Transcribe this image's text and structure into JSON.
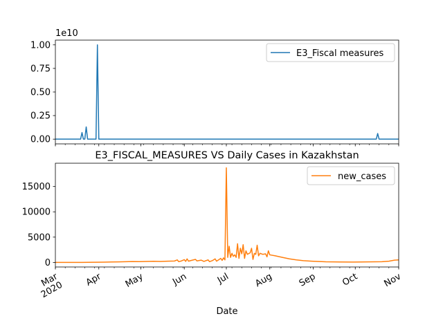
{
  "chart_data": [
    {
      "type": "line",
      "title": "",
      "xlabel": "",
      "ylabel": "",
      "y_offset_label": "1e10",
      "xlim": [
        "2020-03-01",
        "2020-11-01"
      ],
      "ylim": [
        -0.05,
        1.05
      ],
      "yticks": [
        0.0,
        0.25,
        0.5,
        0.75,
        1.0
      ],
      "ytick_labels": [
        "0.00",
        "0.25",
        "0.50",
        "0.75",
        "1.00"
      ],
      "legend": {
        "position": "top-right",
        "entries": [
          "E3_Fiscal measures"
        ]
      },
      "series": [
        {
          "name": "E3_Fiscal measures",
          "color": "#1f77b4",
          "points": [
            [
              "2020-03-01",
              0
            ],
            [
              "2020-03-19",
              0
            ],
            [
              "2020-03-20",
              0.07
            ],
            [
              "2020-03-21",
              0
            ],
            [
              "2020-03-22",
              0
            ],
            [
              "2020-03-23",
              0.13
            ],
            [
              "2020-03-24",
              0
            ],
            [
              "2020-03-30",
              0
            ],
            [
              "2020-03-31",
              1.0
            ],
            [
              "2020-04-01",
              0
            ],
            [
              "2020-10-16",
              0
            ],
            [
              "2020-10-17",
              0.06
            ],
            [
              "2020-10-18",
              0
            ],
            [
              "2020-11-01",
              0
            ]
          ]
        }
      ]
    },
    {
      "type": "line",
      "title": "E3_FISCAL_MEASURES VS Daily Cases in Kazakhstan",
      "xlabel": "Date",
      "ylabel": "",
      "xlim": [
        "2020-03-01",
        "2020-11-01"
      ],
      "ylim": [
        -900,
        19600
      ],
      "yticks": [
        0,
        5000,
        10000,
        15000
      ],
      "ytick_labels": [
        "0",
        "5000",
        "10000",
        "15000"
      ],
      "xticks": [
        "2020-03-01",
        "2020-04-01",
        "2020-05-01",
        "2020-06-01",
        "2020-07-01",
        "2020-08-01",
        "2020-09-01",
        "2020-10-01",
        "2020-11-01"
      ],
      "xtick_labels": [
        "Mar\n2020",
        "Apr",
        "May",
        "Jun",
        "Jul",
        "Aug",
        "Sep",
        "Oct",
        "Nov"
      ],
      "legend": {
        "position": "top-right",
        "entries": [
          "new_cases"
        ]
      },
      "series": [
        {
          "name": "new_cases",
          "color": "#ff7f0e",
          "points": [
            [
              "2020-03-01",
              0
            ],
            [
              "2020-03-20",
              5
            ],
            [
              "2020-03-31",
              40
            ],
            [
              "2020-04-05",
              60
            ],
            [
              "2020-04-10",
              90
            ],
            [
              "2020-04-15",
              110
            ],
            [
              "2020-04-20",
              150
            ],
            [
              "2020-04-25",
              180
            ],
            [
              "2020-04-30",
              160
            ],
            [
              "2020-05-05",
              200
            ],
            [
              "2020-05-10",
              230
            ],
            [
              "2020-05-15",
              200
            ],
            [
              "2020-05-20",
              250
            ],
            [
              "2020-05-25",
              280
            ],
            [
              "2020-05-27",
              500
            ],
            [
              "2020-05-28",
              150
            ],
            [
              "2020-05-30",
              300
            ],
            [
              "2020-06-01",
              550
            ],
            [
              "2020-06-02",
              200
            ],
            [
              "2020-06-03",
              700
            ],
            [
              "2020-06-04",
              250
            ],
            [
              "2020-06-06",
              400
            ],
            [
              "2020-06-09",
              600
            ],
            [
              "2020-06-10",
              300
            ],
            [
              "2020-06-13",
              450
            ],
            [
              "2020-06-15",
              200
            ],
            [
              "2020-06-18",
              500
            ],
            [
              "2020-06-19",
              150
            ],
            [
              "2020-06-21",
              350
            ],
            [
              "2020-06-23",
              700
            ],
            [
              "2020-06-24",
              250
            ],
            [
              "2020-06-26",
              600
            ],
            [
              "2020-06-27",
              800
            ],
            [
              "2020-06-28",
              400
            ],
            [
              "2020-06-29",
              900
            ],
            [
              "2020-06-30",
              500
            ],
            [
              "2020-07-01",
              18700
            ],
            [
              "2020-07-02",
              1000
            ],
            [
              "2020-07-03",
              3200
            ],
            [
              "2020-07-04",
              1000
            ],
            [
              "2020-07-05",
              1800
            ],
            [
              "2020-07-06",
              1200
            ],
            [
              "2020-07-07",
              1500
            ],
            [
              "2020-07-08",
              1000
            ],
            [
              "2020-07-09",
              3700
            ],
            [
              "2020-07-10",
              800
            ],
            [
              "2020-07-11",
              2800
            ],
            [
              "2020-07-12",
              1700
            ],
            [
              "2020-07-13",
              3500
            ],
            [
              "2020-07-14",
              800
            ],
            [
              "2020-07-15",
              2300
            ],
            [
              "2020-07-16",
              1600
            ],
            [
              "2020-07-18",
              1900
            ],
            [
              "2020-07-19",
              2800
            ],
            [
              "2020-07-20",
              600
            ],
            [
              "2020-07-21",
              1800
            ],
            [
              "2020-07-22",
              1600
            ],
            [
              "2020-07-23",
              3400
            ],
            [
              "2020-07-24",
              1300
            ],
            [
              "2020-07-25",
              1800
            ],
            [
              "2020-07-27",
              1600
            ],
            [
              "2020-07-29",
              1700
            ],
            [
              "2020-07-30",
              1100
            ],
            [
              "2020-07-31",
              2300
            ],
            [
              "2020-08-01",
              1500
            ],
            [
              "2020-08-05",
              1300
            ],
            [
              "2020-08-10",
              1000
            ],
            [
              "2020-08-15",
              700
            ],
            [
              "2020-08-20",
              500
            ],
            [
              "2020-08-25",
              350
            ],
            [
              "2020-08-31",
              250
            ],
            [
              "2020-09-10",
              120
            ],
            [
              "2020-09-20",
              90
            ],
            [
              "2020-09-30",
              80
            ],
            [
              "2020-10-10",
              100
            ],
            [
              "2020-10-20",
              150
            ],
            [
              "2020-10-25",
              250
            ],
            [
              "2020-10-29",
              450
            ],
            [
              "2020-11-01",
              500
            ]
          ]
        }
      ]
    }
  ]
}
